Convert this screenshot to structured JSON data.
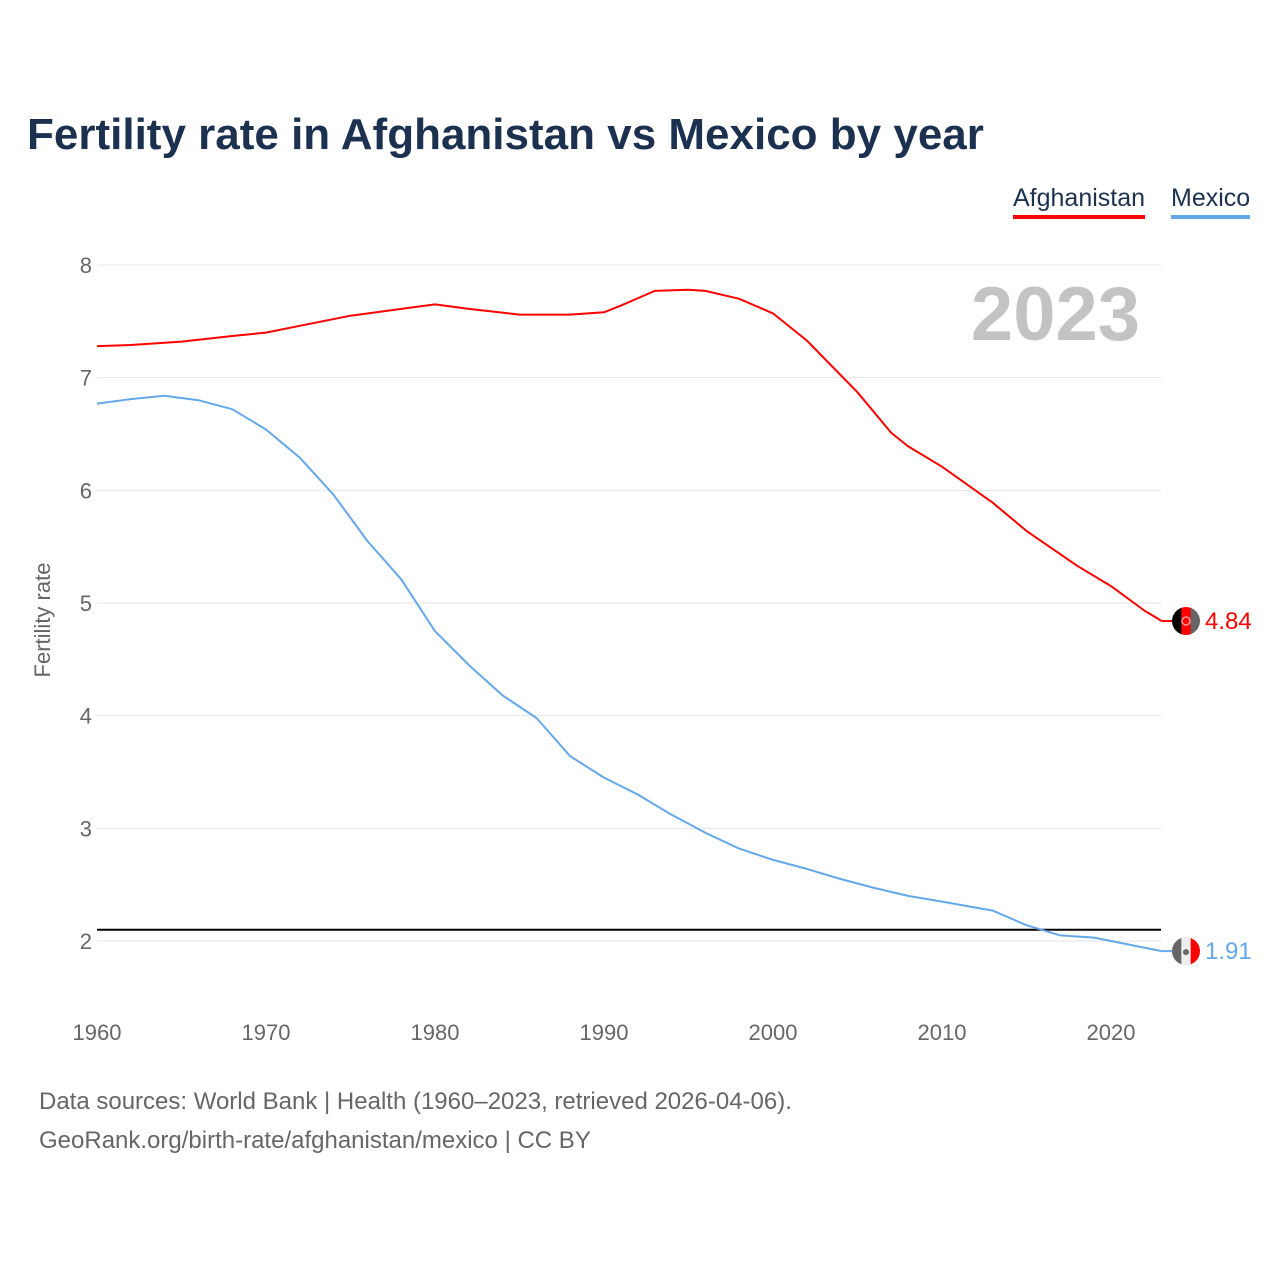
{
  "chart_data": {
    "type": "line",
    "title": "Fertility rate in Afghanistan vs Mexico by year",
    "ylabel": "Fertility rate",
    "xlabel": "",
    "ylim": [
      1.6,
      8.2
    ],
    "xlim": [
      1960,
      2023
    ],
    "yticks": [
      2,
      3,
      4,
      5,
      6,
      7,
      8
    ],
    "xticks": [
      1960,
      1970,
      1980,
      1990,
      2000,
      2010,
      2020
    ],
    "grid": true,
    "legend": "top-right",
    "year_label": "2023",
    "reference_line": {
      "value": 2.1,
      "color": "#000000"
    },
    "series": [
      {
        "name": "Afghanistan",
        "color": "#ff0000",
        "end_label": "4.84",
        "x": [
          1960,
          1962,
          1965,
          1968,
          1970,
          1972,
          1975,
          1978,
          1980,
          1982,
          1985,
          1988,
          1990,
          1991,
          1993,
          1995,
          1996,
          1998,
          2000,
          2002,
          2005,
          2007,
          2008,
          2010,
          2013,
          2015,
          2018,
          2020,
          2022,
          2023
        ],
        "y": [
          7.28,
          7.29,
          7.32,
          7.37,
          7.4,
          7.46,
          7.55,
          7.61,
          7.65,
          7.61,
          7.56,
          7.56,
          7.58,
          7.64,
          7.77,
          7.78,
          7.77,
          7.7,
          7.57,
          7.33,
          6.87,
          6.51,
          6.39,
          6.21,
          5.89,
          5.64,
          5.33,
          5.15,
          4.93,
          4.84
        ]
      },
      {
        "name": "Mexico",
        "color": "#64a8ea",
        "end_label": "1.91",
        "x": [
          1960,
          1962,
          1964,
          1966,
          1968,
          1970,
          1972,
          1974,
          1976,
          1978,
          1980,
          1982,
          1984,
          1986,
          1988,
          1990,
          1992,
          1994,
          1996,
          1998,
          2000,
          2002,
          2004,
          2006,
          2008,
          2010,
          2013,
          2015,
          2017,
          2019,
          2021,
          2023
        ],
        "y": [
          6.77,
          6.81,
          6.84,
          6.8,
          6.72,
          6.54,
          6.29,
          5.96,
          5.55,
          5.21,
          4.75,
          4.45,
          4.18,
          3.98,
          3.64,
          3.45,
          3.3,
          3.12,
          2.96,
          2.82,
          2.72,
          2.64,
          2.55,
          2.47,
          2.4,
          2.35,
          2.27,
          2.14,
          2.05,
          2.03,
          1.97,
          1.91
        ]
      }
    ]
  },
  "footer": {
    "line1": "Data sources: World Bank | Health (1960–2023, retrieved 2026-04-06).",
    "line2": "GeoRank.org/birth-rate/afghanistan/mexico | CC BY"
  }
}
